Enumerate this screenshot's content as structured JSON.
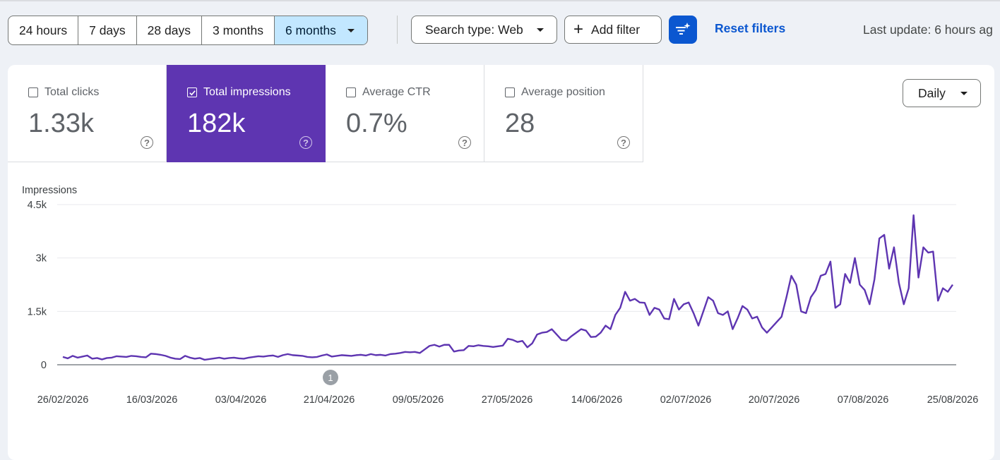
{
  "toolbar": {
    "date_ranges": [
      "24 hours",
      "7 days",
      "28 days",
      "3 months",
      "6 months"
    ],
    "active_range": "6 months",
    "search_type": "Search type: Web",
    "add_filter": "Add filter",
    "reset_filters": "Reset filters",
    "last_update": "Last update: 6 hours ag"
  },
  "metrics": [
    {
      "label": "Total clicks",
      "value": "1.33k",
      "checked": false
    },
    {
      "label": "Total impressions",
      "value": "182k",
      "checked": true
    },
    {
      "label": "Average CTR",
      "value": "0.7%",
      "checked": false
    },
    {
      "label": "Average position",
      "value": "28",
      "checked": false
    }
  ],
  "granularity": "Daily",
  "icons": {
    "help": "help-icon",
    "caret": "chevron-down-icon",
    "plus": "plus-icon",
    "ai_filter": "sparkle-filter-icon",
    "checkbox": "checkbox-icon"
  },
  "colors": {
    "accent": "#0b57d0",
    "selected_metric": "#5e35b1",
    "series": "#5e35b1",
    "active_segment": "#c2e7ff"
  },
  "chart_data": {
    "type": "line",
    "ylabel": "Impressions",
    "y_ticks": [
      "0",
      "1.5k",
      "3k",
      "4.5k"
    ],
    "ylim": [
      0,
      4500
    ],
    "x_ticks": [
      "26/02/2026",
      "16/03/2026",
      "03/04/2026",
      "21/04/2026",
      "09/05/2026",
      "27/05/2026",
      "14/06/2026",
      "02/07/2026",
      "20/07/2026",
      "07/08/2026",
      "25/08/2026"
    ],
    "x_start": "2026-02-26",
    "x_end": "2026-08-25",
    "annotations": [
      {
        "date": "2026-04-21",
        "label": "1"
      }
    ],
    "grid": true,
    "series": [
      {
        "values": [
          220,
          180,
          250,
          200,
          230,
          260,
          170,
          190,
          150,
          190,
          200,
          240,
          230,
          220,
          250,
          240,
          220,
          210,
          310,
          300,
          280,
          250,
          200,
          170,
          160,
          250,
          200,
          170,
          190,
          140,
          160,
          180,
          200,
          170,
          190,
          200,
          180,
          170,
          200,
          220,
          240,
          230,
          250,
          260,
          220,
          270,
          300,
          270,
          260,
          250,
          220,
          210,
          220,
          260,
          290,
          230,
          250,
          270,
          260,
          250,
          270,
          280,
          260,
          300,
          270,
          280,
          260,
          300,
          310,
          330,
          360,
          350,
          360,
          330,
          430,
          530,
          560,
          510,
          560,
          560,
          370,
          400,
          410,
          530,
          520,
          550,
          530,
          520,
          500,
          520,
          540,
          730,
          700,
          640,
          670,
          490,
          600,
          850,
          900,
          920,
          1000,
          850,
          700,
          680,
          800,
          900,
          1000,
          960,
          780,
          790,
          900,
          1100,
          1000,
          1400,
          1600,
          2050,
          1800,
          1850,
          1750,
          1740,
          1400,
          1600,
          1550,
          1300,
          1280,
          1850,
          1550,
          1700,
          1750,
          1450,
          1100,
          1500,
          1900,
          1800,
          1450,
          1400,
          1500,
          1000,
          1300,
          1650,
          1550,
          1300,
          1350,
          1050,
          900,
          1050,
          1200,
          1350,
          1900,
          2500,
          2250,
          1500,
          1450,
          1900,
          2100,
          2500,
          2550,
          2900,
          1600,
          1700,
          2550,
          2300,
          3000,
          2250,
          2100,
          1700,
          2400,
          3550,
          3650,
          2700,
          3300,
          2300,
          1700,
          2150,
          4200,
          2450,
          3300,
          3150,
          3180,
          1800,
          2150,
          2050,
          2250
        ]
      }
    ]
  }
}
